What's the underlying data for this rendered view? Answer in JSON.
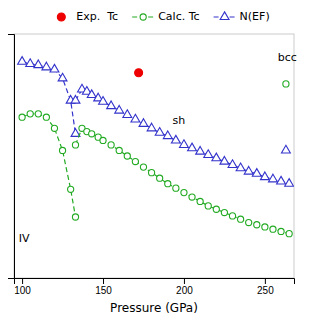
{
  "chart_data": {
    "type": "line",
    "xlabel": "Pressure (GPa)",
    "xlim": [
      95,
      268
    ],
    "ylim": [
      0,
      22
    ],
    "xticks": [
      100,
      150,
      200,
      250
    ],
    "yticks": [],
    "tick_labels": "x",
    "legend": "top",
    "series": [
      {
        "name": "Exp.  Tc",
        "color": "#ee0000",
        "marker": "circle",
        "line_style": "none",
        "x": [
          172
        ],
        "values": [
          18.5
        ]
      },
      {
        "name": "Calc. Tc",
        "color": "#22aa22",
        "marker": "open-circle",
        "line_style": "dashed",
        "x": [
          100,
          105,
          110,
          115,
          120,
          125,
          130,
          133,
          null,
          133,
          137,
          140,
          143,
          147,
          150,
          155,
          160,
          165,
          170,
          175,
          180,
          185,
          190,
          195,
          200,
          205,
          210,
          215,
          220,
          225,
          230,
          235,
          240,
          245,
          250,
          255,
          260,
          265,
          null,
          263
        ],
        "values": [
          14.5,
          14.8,
          14.8,
          14.5,
          13.5,
          11.5,
          8.0,
          5.5,
          null,
          12.0,
          13.5,
          13.2,
          13.0,
          12.7,
          12.4,
          12.0,
          11.5,
          11.0,
          10.5,
          10.0,
          9.5,
          9.0,
          8.5,
          8.1,
          7.7,
          7.3,
          6.9,
          6.5,
          6.2,
          5.9,
          5.6,
          5.3,
          5.0,
          4.8,
          4.6,
          4.4,
          4.2,
          4.0,
          null,
          17.5
        ]
      },
      {
        "name": "N(EF)",
        "color": "#3333cc",
        "marker": "open-triangle",
        "line_style": "dashed",
        "x": [
          100,
          105,
          110,
          115,
          120,
          125,
          130,
          133,
          null,
          133,
          137,
          140,
          143,
          147,
          150,
          155,
          160,
          165,
          170,
          175,
          180,
          185,
          190,
          195,
          200,
          205,
          210,
          215,
          220,
          225,
          230,
          235,
          240,
          245,
          250,
          255,
          260,
          265,
          null,
          263
        ],
        "values": [
          19.5,
          19.3,
          19.2,
          19.0,
          18.8,
          18.0,
          16.0,
          13.0,
          null,
          16.0,
          17.0,
          16.8,
          16.5,
          16.2,
          15.9,
          15.5,
          15.1,
          14.7,
          14.3,
          13.9,
          13.5,
          13.1,
          12.8,
          12.4,
          12.0,
          11.7,
          11.4,
          11.1,
          10.8,
          10.5,
          10.2,
          9.9,
          9.6,
          9.4,
          9.1,
          8.9,
          8.7,
          8.5,
          null,
          11.5
        ]
      }
    ],
    "annotations": [
      {
        "text": "IV",
        "x": 98,
        "y": 3.5
      },
      {
        "text": "sh",
        "x": 193,
        "y": 14.2
      },
      {
        "text": "bcc",
        "x": 258,
        "y": 19.8
      }
    ]
  }
}
